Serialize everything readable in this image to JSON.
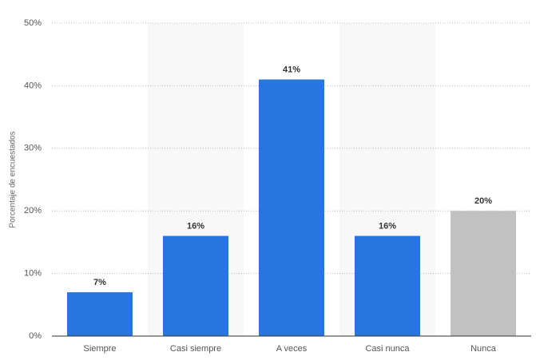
{
  "chart_data": {
    "type": "bar",
    "y_label": "Porcentaje de encuestados",
    "categories": [
      "Siempre",
      "Casi siempre",
      "A veces",
      "Casi nunca",
      "Nunca"
    ],
    "values": [
      7,
      16,
      41,
      16,
      20
    ],
    "value_labels": [
      "7%",
      "16%",
      "41%",
      "16%",
      "20%"
    ],
    "colors": [
      "#2876dd",
      "#2876dd",
      "#2876dd",
      "#2876dd",
      "#c1c1c1"
    ],
    "ylim": [
      0,
      50
    ],
    "yticks": [
      {
        "value": 0,
        "label": "0%"
      },
      {
        "value": 10,
        "label": "10%"
      },
      {
        "value": 20,
        "label": "20%"
      },
      {
        "value": 30,
        "label": "30%"
      },
      {
        "value": 40,
        "label": "40%"
      },
      {
        "value": 50,
        "label": "50%"
      }
    ],
    "grid": true
  }
}
